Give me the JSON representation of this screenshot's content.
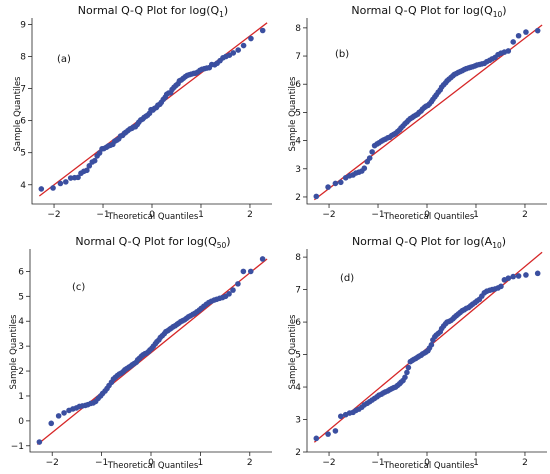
{
  "chart_data": [
    {
      "type": "scatter",
      "title": "Normal Q-Q Plot for log(Q",
      "title_sub": "1",
      "title_end": ")",
      "panel_label": "(a)",
      "xlabel": "Theoretical Quantiles",
      "ylabel": "Sample Quantiles",
      "xlim": [
        -2.45,
        2.45
      ],
      "ylim": [
        3.4,
        9.2
      ],
      "xticks": [
        -2,
        -1,
        0,
        1,
        2
      ],
      "yticks": [
        4,
        5,
        6,
        7,
        8,
        9
      ],
      "line": {
        "x": [
          -2.3,
          2.35
        ],
        "y": [
          3.65,
          9.05
        ]
      },
      "series": [
        {
          "x": [
            -2.26,
            -2.02,
            -1.87,
            -1.76,
            -1.66,
            -1.58,
            -1.51,
            -1.45,
            -1.39,
            -1.33,
            -1.28,
            -1.22,
            -1.17,
            -1.12,
            -1.07,
            -1.02,
            -0.98,
            -0.93,
            -0.89,
            -0.85,
            -0.8,
            -0.76,
            -0.72,
            -0.68,
            -0.64,
            -0.6,
            -0.56,
            -0.53,
            -0.49,
            -0.45,
            -0.41,
            -0.38,
            -0.34,
            -0.3,
            -0.27,
            -0.23,
            -0.19,
            -0.16,
            -0.12,
            -0.09,
            -0.05,
            -0.02,
            0.02,
            0.05,
            0.09,
            0.12,
            0.16,
            0.19,
            0.23,
            0.27,
            0.3,
            0.34,
            0.38,
            0.41,
            0.45,
            0.49,
            0.53,
            0.56,
            0.6,
            0.64,
            0.68,
            0.72,
            0.76,
            0.8,
            0.85,
            0.89,
            0.93,
            0.98,
            1.02,
            1.07,
            1.12,
            1.17,
            1.22,
            1.28,
            1.33,
            1.39,
            1.45,
            1.51,
            1.58,
            1.66,
            1.76,
            1.87,
            2.02,
            2.26
          ],
          "y": [
            3.87,
            3.9,
            4.04,
            4.09,
            4.21,
            4.22,
            4.23,
            4.36,
            4.42,
            4.45,
            4.59,
            4.71,
            4.75,
            4.9,
            4.99,
            5.12,
            5.13,
            5.17,
            5.21,
            5.23,
            5.26,
            5.36,
            5.39,
            5.43,
            5.52,
            5.54,
            5.61,
            5.64,
            5.69,
            5.74,
            5.76,
            5.8,
            5.81,
            5.88,
            5.95,
            6.02,
            6.05,
            6.1,
            6.14,
            6.17,
            6.23,
            6.34,
            6.33,
            6.38,
            6.41,
            6.48,
            6.51,
            6.57,
            6.66,
            6.73,
            6.82,
            6.86,
            6.87,
            6.97,
            7.04,
            7.1,
            7.15,
            7.24,
            7.27,
            7.32,
            7.37,
            7.41,
            7.43,
            7.45,
            7.47,
            7.48,
            7.51,
            7.57,
            7.6,
            7.62,
            7.64,
            7.65,
            7.75,
            7.74,
            7.79,
            7.87,
            7.96,
            8.0,
            8.04,
            8.11,
            8.2,
            8.34,
            8.56,
            8.81
          ]
        }
      ]
    },
    {
      "type": "scatter",
      "title": "Normal Q-Q Plot for log(Q",
      "title_sub": "10",
      "title_end": ")",
      "panel_label": "(b)",
      "xlabel": "Theoretical Quantiles",
      "ylabel": "Sample Quantiles",
      "xlim": [
        -2.45,
        2.45
      ],
      "ylim": [
        1.75,
        8.35
      ],
      "xticks": [
        -2,
        -1,
        0,
        1,
        2
      ],
      "yticks": [
        2,
        3,
        4,
        5,
        6,
        7,
        8
      ],
      "line": {
        "x": [
          -2.3,
          2.35
        ],
        "y": [
          1.9,
          8.1
        ]
      },
      "series": [
        {
          "x": [
            -2.26,
            -2.02,
            -1.87,
            -1.76,
            -1.66,
            -1.58,
            -1.51,
            -1.45,
            -1.39,
            -1.33,
            -1.28,
            -1.22,
            -1.17,
            -1.12,
            -1.07,
            -1.02,
            -0.98,
            -0.93,
            -0.89,
            -0.85,
            -0.8,
            -0.76,
            -0.72,
            -0.68,
            -0.64,
            -0.6,
            -0.56,
            -0.53,
            -0.49,
            -0.45,
            -0.41,
            -0.38,
            -0.34,
            -0.3,
            -0.27,
            -0.23,
            -0.19,
            -0.16,
            -0.12,
            -0.09,
            -0.05,
            -0.02,
            0.02,
            0.05,
            0.09,
            0.12,
            0.16,
            0.19,
            0.23,
            0.27,
            0.3,
            0.34,
            0.38,
            0.41,
            0.45,
            0.49,
            0.53,
            0.56,
            0.6,
            0.64,
            0.68,
            0.72,
            0.76,
            0.8,
            0.85,
            0.89,
            0.93,
            0.98,
            1.02,
            1.07,
            1.12,
            1.17,
            1.22,
            1.28,
            1.33,
            1.39,
            1.45,
            1.51,
            1.58,
            1.66,
            1.76,
            1.87,
            2.02,
            2.26
          ],
          "y": [
            2.02,
            2.35,
            2.48,
            2.52,
            2.68,
            2.75,
            2.78,
            2.85,
            2.88,
            2.92,
            3.02,
            3.25,
            3.38,
            3.6,
            3.82,
            3.88,
            3.92,
            3.98,
            4.02,
            4.05,
            4.1,
            4.12,
            4.18,
            4.22,
            4.26,
            4.32,
            4.38,
            4.45,
            4.52,
            4.6,
            4.66,
            4.72,
            4.78,
            4.82,
            4.86,
            4.9,
            4.94,
            5.0,
            5.05,
            5.12,
            5.18,
            5.22,
            5.25,
            5.3,
            5.38,
            5.46,
            5.55,
            5.62,
            5.72,
            5.8,
            5.9,
            5.98,
            6.05,
            6.12,
            6.18,
            6.24,
            6.3,
            6.35,
            6.38,
            6.42,
            6.45,
            6.48,
            6.52,
            6.55,
            6.58,
            6.6,
            6.62,
            6.65,
            6.68,
            6.7,
            6.72,
            6.74,
            6.8,
            6.85,
            6.9,
            6.95,
            7.05,
            7.1,
            7.14,
            7.18,
            7.5,
            7.72,
            7.85,
            7.9
          ]
        }
      ]
    },
    {
      "type": "scatter",
      "title": "Normal Q-Q Plot for log(Q",
      "title_sub": "50",
      "title_end": ")",
      "panel_label": "(c)",
      "xlabel": "Theoretical Quantiles",
      "ylabel": "Sample Quantiles",
      "xlim": [
        -2.45,
        2.45
      ],
      "ylim": [
        -1.25,
        6.9
      ],
      "xticks": [
        -2,
        -1,
        0,
        1,
        2
      ],
      "yticks": [
        -1,
        0,
        1,
        2,
        3,
        4,
        5,
        6
      ],
      "line": {
        "x": [
          -2.3,
          2.35
        ],
        "y": [
          -0.95,
          6.5
        ]
      },
      "series": [
        {
          "x": [
            -2.26,
            -2.02,
            -1.87,
            -1.76,
            -1.66,
            -1.58,
            -1.51,
            -1.45,
            -1.39,
            -1.33,
            -1.28,
            -1.22,
            -1.17,
            -1.12,
            -1.07,
            -1.02,
            -0.98,
            -0.93,
            -0.89,
            -0.85,
            -0.8,
            -0.76,
            -0.72,
            -0.68,
            -0.64,
            -0.6,
            -0.56,
            -0.53,
            -0.49,
            -0.45,
            -0.41,
            -0.38,
            -0.34,
            -0.3,
            -0.27,
            -0.23,
            -0.19,
            -0.16,
            -0.12,
            -0.09,
            -0.05,
            -0.02,
            0.02,
            0.05,
            0.09,
            0.12,
            0.16,
            0.19,
            0.23,
            0.27,
            0.3,
            0.34,
            0.38,
            0.41,
            0.45,
            0.49,
            0.53,
            0.56,
            0.6,
            0.64,
            0.68,
            0.72,
            0.76,
            0.8,
            0.85,
            0.89,
            0.93,
            0.98,
            1.02,
            1.07,
            1.12,
            1.17,
            1.22,
            1.28,
            1.33,
            1.39,
            1.45,
            1.51,
            1.58,
            1.66,
            1.76,
            1.87,
            2.02,
            2.26
          ],
          "y": [
            -0.85,
            -0.1,
            0.2,
            0.32,
            0.42,
            0.48,
            0.52,
            0.58,
            0.6,
            0.62,
            0.65,
            0.7,
            0.72,
            0.78,
            0.9,
            1.0,
            1.1,
            1.2,
            1.3,
            1.42,
            1.55,
            1.68,
            1.75,
            1.82,
            1.88,
            1.92,
            1.98,
            2.05,
            2.1,
            2.15,
            2.2,
            2.25,
            2.3,
            2.35,
            2.45,
            2.52,
            2.6,
            2.65,
            2.7,
            2.72,
            2.78,
            2.85,
            2.92,
            3.0,
            3.1,
            3.18,
            3.25,
            3.35,
            3.42,
            3.5,
            3.58,
            3.62,
            3.68,
            3.72,
            3.78,
            3.82,
            3.88,
            3.92,
            3.98,
            4.02,
            4.06,
            4.12,
            4.18,
            4.22,
            4.28,
            4.32,
            4.38,
            4.45,
            4.52,
            4.6,
            4.68,
            4.75,
            4.8,
            4.85,
            4.88,
            4.92,
            4.95,
            5.0,
            5.1,
            5.25,
            5.5,
            6.0,
            6.0,
            6.5
          ]
        }
      ]
    },
    {
      "type": "scatter",
      "title": "Normal Q-Q Plot for log(A",
      "title_sub": "10",
      "title_end": ")",
      "panel_label": "(d)",
      "xlabel": "Theoretical Quantiles",
      "ylabel": "Sample Quantiles",
      "xlim": [
        -2.45,
        2.45
      ],
      "ylim": [
        2.0,
        8.25
      ],
      "xticks": [
        -2,
        -1,
        0,
        1,
        2
      ],
      "yticks": [
        2,
        3,
        4,
        5,
        6,
        7,
        8
      ],
      "line": {
        "x": [
          -2.3,
          2.35
        ],
        "y": [
          2.3,
          8.15
        ]
      },
      "series": [
        {
          "x": [
            -2.26,
            -2.02,
            -1.87,
            -1.76,
            -1.66,
            -1.58,
            -1.51,
            -1.45,
            -1.39,
            -1.33,
            -1.28,
            -1.22,
            -1.17,
            -1.12,
            -1.07,
            -1.02,
            -0.98,
            -0.93,
            -0.89,
            -0.85,
            -0.8,
            -0.76,
            -0.72,
            -0.68,
            -0.64,
            -0.6,
            -0.56,
            -0.53,
            -0.49,
            -0.45,
            -0.41,
            -0.38,
            -0.34,
            -0.3,
            -0.27,
            -0.23,
            -0.19,
            -0.16,
            -0.12,
            -0.09,
            -0.05,
            -0.02,
            0.02,
            0.05,
            0.09,
            0.12,
            0.16,
            0.19,
            0.23,
            0.27,
            0.3,
            0.34,
            0.38,
            0.41,
            0.45,
            0.49,
            0.53,
            0.56,
            0.6,
            0.64,
            0.68,
            0.72,
            0.76,
            0.8,
            0.85,
            0.89,
            0.93,
            0.98,
            1.02,
            1.07,
            1.12,
            1.17,
            1.22,
            1.28,
            1.33,
            1.39,
            1.45,
            1.51,
            1.58,
            1.66,
            1.76,
            1.87,
            2.02,
            2.26
          ],
          "y": [
            2.42,
            2.55,
            2.65,
            3.1,
            3.15,
            3.2,
            3.22,
            3.28,
            3.32,
            3.38,
            3.45,
            3.5,
            3.55,
            3.6,
            3.65,
            3.7,
            3.75,
            3.78,
            3.82,
            3.85,
            3.88,
            3.92,
            3.95,
            3.98,
            4.0,
            4.05,
            4.1,
            4.15,
            4.2,
            4.3,
            4.45,
            4.6,
            4.78,
            4.82,
            4.85,
            4.88,
            4.92,
            4.95,
            4.98,
            5.02,
            5.05,
            5.08,
            5.12,
            5.2,
            5.3,
            5.45,
            5.55,
            5.6,
            5.65,
            5.7,
            5.8,
            5.88,
            5.95,
            6.0,
            6.02,
            6.05,
            6.1,
            6.15,
            6.2,
            6.25,
            6.3,
            6.35,
            6.38,
            6.42,
            6.45,
            6.5,
            6.55,
            6.6,
            6.65,
            6.7,
            6.8,
            6.9,
            6.95,
            6.98,
            7.0,
            7.02,
            7.05,
            7.1,
            7.3,
            7.35,
            7.4,
            7.42,
            7.45,
            7.5
          ]
        }
      ]
    }
  ]
}
